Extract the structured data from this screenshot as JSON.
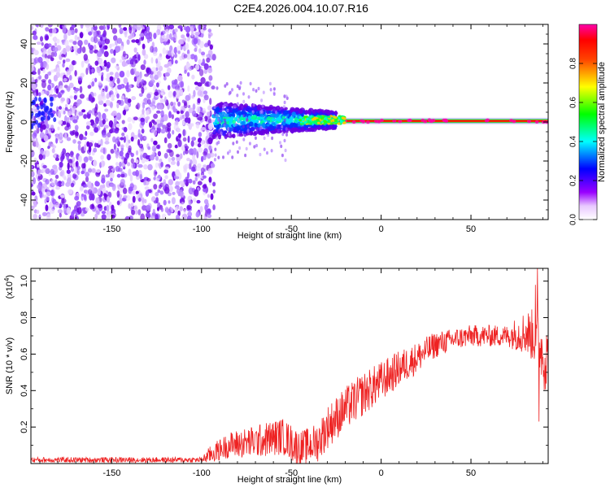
{
  "title": "C2E4.2026.004.10.07.R16",
  "chart_data": [
    {
      "type": "heatmap",
      "xlabel": "Height of straight line (km)",
      "ylabel": "Frequency (Hz)",
      "xlim": [
        -195,
        93
      ],
      "ylim": [
        -50,
        50
      ],
      "xticks": [
        -150,
        -100,
        -50,
        0,
        50
      ],
      "yticks": [
        -40,
        -20,
        0,
        20,
        40
      ],
      "colorbar": {
        "label": "Normalized spectral amplitude",
        "range": [
          0,
          1
        ],
        "ticks": [
          "0.0",
          "0.2",
          "0.4",
          "0.6",
          "0.8"
        ],
        "colors": [
          "#ffffff",
          "#9900ff",
          "#0000ff",
          "#00ffff",
          "#00ff00",
          "#ffff00",
          "#ff0000",
          "#ff00aa"
        ]
      },
      "regions": [
        {
          "x": [
            -195,
            -93
          ],
          "y": [
            -50,
            50
          ],
          "level": 0.1,
          "pattern": "noise"
        },
        {
          "x": [
            -93,
            -25
          ],
          "y": [
            -8,
            10
          ],
          "level": 0.3,
          "pattern": "band"
        },
        {
          "x": [
            -25,
            93
          ],
          "y": [
            -1,
            2
          ],
          "level": 0.85,
          "pattern": "line"
        }
      ]
    },
    {
      "type": "line",
      "xlabel": "Height of straight line (km)",
      "ylabel": "SNR (10 * v/v)",
      "y_multiplier": "(x10",
      "y_multiplier_exp": "4",
      "y_multiplier_close": ")",
      "xlim": [
        -195,
        93
      ],
      "ylim": [
        0,
        1.07
      ],
      "xticks": [
        -150,
        -100,
        -50,
        0,
        50
      ],
      "yticks": [
        0.2,
        0.4,
        0.6,
        0.8,
        1.0
      ],
      "ytick_labels": [
        "0.2",
        "0.4",
        "0.6",
        "0.8",
        "1.0"
      ],
      "color": "#ee2222",
      "trend": {
        "x": [
          -195,
          -100,
          -95,
          -85,
          -70,
          -55,
          -45,
          -35,
          -30,
          -20,
          -10,
          0,
          10,
          20,
          30,
          40,
          50,
          60,
          70,
          80,
          85,
          88,
          90,
          93
        ],
        "y": [
          0.02,
          0.02,
          0.05,
          0.1,
          0.12,
          0.15,
          0.08,
          0.12,
          0.2,
          0.3,
          0.38,
          0.45,
          0.52,
          0.58,
          0.65,
          0.68,
          0.7,
          0.7,
          0.7,
          0.72,
          0.7,
          0.68,
          0.6,
          0.55
        ]
      },
      "noise_amplitude": {
        "x": [
          -195,
          -100,
          -95,
          -80,
          -60,
          -40,
          -30,
          -10,
          10,
          40,
          70,
          85,
          93
        ],
        "y": [
          0.015,
          0.015,
          0.05,
          0.08,
          0.1,
          0.1,
          0.12,
          0.12,
          0.1,
          0.06,
          0.06,
          0.15,
          0.2
        ]
      },
      "spikes": [
        {
          "x": 87,
          "y": 1.07
        },
        {
          "x": 88,
          "y": 0.23
        },
        {
          "x": 86,
          "y": 0.98
        }
      ]
    }
  ]
}
